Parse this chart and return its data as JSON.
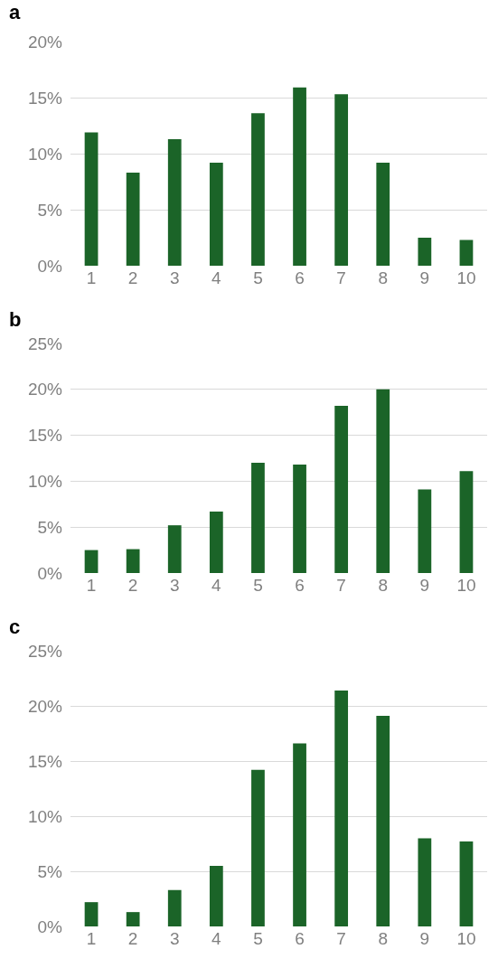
{
  "chart_data": [
    {
      "type": "bar",
      "title": "a",
      "categories": [
        "1",
        "2",
        "3",
        "4",
        "5",
        "6",
        "7",
        "8",
        "9",
        "10"
      ],
      "values": [
        11.9,
        8.3,
        11.3,
        9.2,
        13.6,
        15.9,
        15.3,
        9.2,
        2.5,
        2.3
      ],
      "color": "#1b6428",
      "ylim": [
        0,
        20
      ],
      "yticks": [
        {
          "value": 0,
          "label": "0%"
        },
        {
          "value": 5,
          "label": "5%"
        },
        {
          "value": 10,
          "label": "10%"
        },
        {
          "value": 15,
          "label": "15%"
        },
        {
          "value": 20,
          "label": "20%"
        }
      ],
      "grid": "y",
      "legend": false
    },
    {
      "type": "bar",
      "title": "b",
      "categories": [
        "1",
        "2",
        "3",
        "4",
        "5",
        "6",
        "7",
        "8",
        "9",
        "10"
      ],
      "values": [
        2.5,
        2.6,
        5.2,
        6.7,
        12.0,
        11.8,
        18.2,
        20.0,
        9.1,
        11.1
      ],
      "color": "#1b6428",
      "ylim": [
        0,
        25
      ],
      "yticks": [
        {
          "value": 0,
          "label": "0%"
        },
        {
          "value": 5,
          "label": "5%"
        },
        {
          "value": 10,
          "label": "10%"
        },
        {
          "value": 15,
          "label": "15%"
        },
        {
          "value": 20,
          "label": "20%"
        },
        {
          "value": 25,
          "label": "25%"
        }
      ],
      "grid": "y",
      "legend": false
    },
    {
      "type": "bar",
      "title": "c",
      "categories": [
        "1",
        "2",
        "3",
        "4",
        "5",
        "6",
        "7",
        "8",
        "9",
        "10"
      ],
      "values": [
        2.2,
        1.3,
        3.3,
        5.5,
        14.2,
        16.6,
        21.4,
        19.1,
        8.0,
        7.7
      ],
      "color": "#1b6428",
      "ylim": [
        0,
        25
      ],
      "yticks": [
        {
          "value": 0,
          "label": "0%"
        },
        {
          "value": 5,
          "label": "5%"
        },
        {
          "value": 10,
          "label": "10%"
        },
        {
          "value": 15,
          "label": "15%"
        },
        {
          "value": 20,
          "label": "20%"
        },
        {
          "value": 25,
          "label": "25%"
        }
      ],
      "grid": "y",
      "legend": false
    }
  ]
}
